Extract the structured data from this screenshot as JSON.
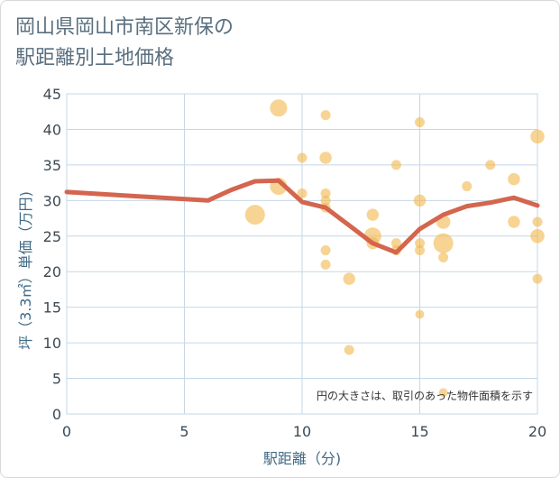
{
  "title_line1": "岡山県岡山市南区新保の",
  "title_line2": "駅距離別土地価格",
  "colors": {
    "bubble": "#f2b84b",
    "line": "#d4654e",
    "grid": "#c5d7e6",
    "axis_text": "#3f6a86"
  },
  "chart_data": {
    "type": "scatter",
    "xlabel": "駅距離（分)",
    "ylabel": "坪（3.3㎡）単価（万円)",
    "xlim": [
      0,
      20
    ],
    "ylim": [
      0,
      45
    ],
    "xticks": [
      0,
      5,
      10,
      15,
      20
    ],
    "yticks": [
      0,
      5,
      10,
      15,
      20,
      25,
      30,
      35,
      40,
      45
    ],
    "annotation": "円の大きさは、取引のあった物件面積を示す",
    "bubbles": [
      {
        "x": 9,
        "y": 43,
        "size": 3
      },
      {
        "x": 8,
        "y": 28,
        "size": 4
      },
      {
        "x": 9,
        "y": 32,
        "size": 3
      },
      {
        "x": 10,
        "y": 36,
        "size": 1
      },
      {
        "x": 10,
        "y": 31,
        "size": 1
      },
      {
        "x": 11,
        "y": 42,
        "size": 1
      },
      {
        "x": 11,
        "y": 36,
        "size": 1.5
      },
      {
        "x": 11,
        "y": 31,
        "size": 1
      },
      {
        "x": 11,
        "y": 30,
        "size": 1
      },
      {
        "x": 11,
        "y": 29,
        "size": 1
      },
      {
        "x": 11,
        "y": 23,
        "size": 1
      },
      {
        "x": 11,
        "y": 21,
        "size": 1
      },
      {
        "x": 12,
        "y": 19,
        "size": 1.5
      },
      {
        "x": 12,
        "y": 9,
        "size": 1
      },
      {
        "x": 13,
        "y": 28,
        "size": 1.5
      },
      {
        "x": 13,
        "y": 25,
        "size": 3
      },
      {
        "x": 13,
        "y": 24,
        "size": 1.5
      },
      {
        "x": 14,
        "y": 35,
        "size": 1
      },
      {
        "x": 14,
        "y": 24,
        "size": 1
      },
      {
        "x": 14,
        "y": 23,
        "size": 1
      },
      {
        "x": 15,
        "y": 41,
        "size": 1
      },
      {
        "x": 15,
        "y": 30,
        "size": 1.5
      },
      {
        "x": 15,
        "y": 24,
        "size": 1
      },
      {
        "x": 15,
        "y": 23,
        "size": 1
      },
      {
        "x": 15,
        "y": 14,
        "size": 0.8
      },
      {
        "x": 16,
        "y": 27,
        "size": 2
      },
      {
        "x": 16,
        "y": 24,
        "size": 4
      },
      {
        "x": 16,
        "y": 22,
        "size": 1
      },
      {
        "x": 16,
        "y": 3,
        "size": 0.8
      },
      {
        "x": 17,
        "y": 32,
        "size": 1
      },
      {
        "x": 18,
        "y": 35,
        "size": 1
      },
      {
        "x": 19,
        "y": 33,
        "size": 1.5
      },
      {
        "x": 19,
        "y": 27,
        "size": 1.5
      },
      {
        "x": 20,
        "y": 39,
        "size": 2
      },
      {
        "x": 20,
        "y": 27,
        "size": 1
      },
      {
        "x": 20,
        "y": 25,
        "size": 2
      },
      {
        "x": 20,
        "y": 19,
        "size": 1
      }
    ],
    "average_line": [
      {
        "x": 0,
        "y": 31.2
      },
      {
        "x": 6,
        "y": 30
      },
      {
        "x": 7,
        "y": 31.5
      },
      {
        "x": 8,
        "y": 32.7
      },
      {
        "x": 9,
        "y": 32.8
      },
      {
        "x": 10,
        "y": 29.8
      },
      {
        "x": 11,
        "y": 29
      },
      {
        "x": 12,
        "y": 26.5
      },
      {
        "x": 13,
        "y": 24
      },
      {
        "x": 14,
        "y": 22.7
      },
      {
        "x": 15,
        "y": 26
      },
      {
        "x": 16,
        "y": 28
      },
      {
        "x": 17,
        "y": 29.2
      },
      {
        "x": 18,
        "y": 29.7
      },
      {
        "x": 19,
        "y": 30.4
      },
      {
        "x": 20,
        "y": 29.3
      }
    ]
  }
}
